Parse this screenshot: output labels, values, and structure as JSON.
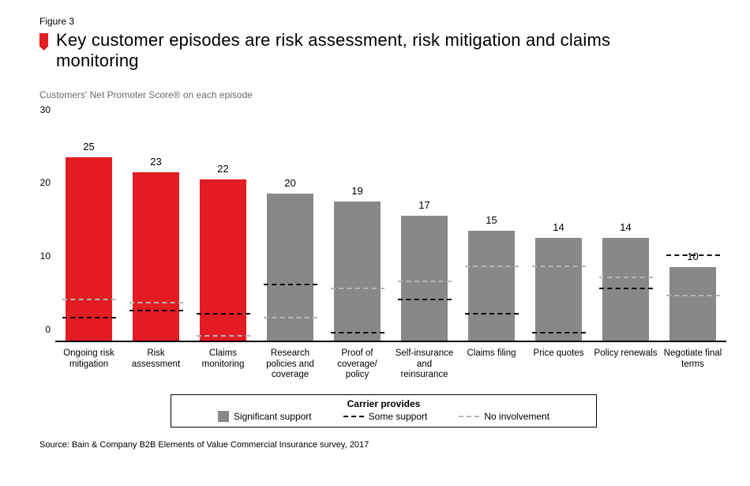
{
  "figure_label": "Figure 3",
  "title": "Key customer episodes are risk assessment, risk mitigation and claims monitoring",
  "subtitle": "Customers' Net Promoter Score® on each episode",
  "source": "Source: Bain & Company B2B Elements of Value Commercial Insurance survey, 2017",
  "chart": {
    "type": "bar",
    "ylim": [
      0,
      30
    ],
    "yticks": [
      0,
      10,
      20,
      30
    ],
    "colors": {
      "highlight": "#e31b23",
      "normal": "#888888",
      "some_support_dash": "#000000",
      "no_involvement_dash": "#b5b5b5",
      "axis": "#000000",
      "background": "#ffffff"
    },
    "bar_width_ratio": 0.7,
    "categories": [
      {
        "label": "Ongoing risk mitigation",
        "value": 25,
        "highlight": true,
        "some_support": 3,
        "no_involvement": 5.5
      },
      {
        "label": "Risk assessment",
        "value": 23,
        "highlight": true,
        "some_support": 4,
        "no_involvement": 5
      },
      {
        "label": "Claims monitoring",
        "value": 22,
        "highlight": true,
        "some_support": 3.5,
        "no_involvement": 0.5
      },
      {
        "label": "Research policies and coverage",
        "value": 20,
        "highlight": false,
        "some_support": 7.5,
        "no_involvement": 3
      },
      {
        "label": "Proof of coverage/ policy",
        "value": 19,
        "highlight": false,
        "some_support": 1,
        "no_involvement": 7
      },
      {
        "label": "Self-insurance and reinsurance",
        "value": 17,
        "highlight": false,
        "some_support": 5.5,
        "no_involvement": 8
      },
      {
        "label": "Claims filing",
        "value": 15,
        "highlight": false,
        "some_support": 3.5,
        "no_involvement": 10
      },
      {
        "label": "Price quotes",
        "value": 14,
        "highlight": false,
        "some_support": 1,
        "no_involvement": 10
      },
      {
        "label": "Policy renewals",
        "value": 14,
        "highlight": false,
        "some_support": 7,
        "no_involvement": 8.5
      },
      {
        "label": "Negotiate final terms",
        "value": 10,
        "highlight": false,
        "some_support": 11.5,
        "no_involvement": 6
      }
    ],
    "legend": {
      "title": "Carrier provides",
      "items": [
        {
          "label": "Significant support",
          "type": "box"
        },
        {
          "label": "Some support",
          "type": "dash_black"
        },
        {
          "label": "No involvement",
          "type": "dash_gray"
        }
      ]
    }
  }
}
